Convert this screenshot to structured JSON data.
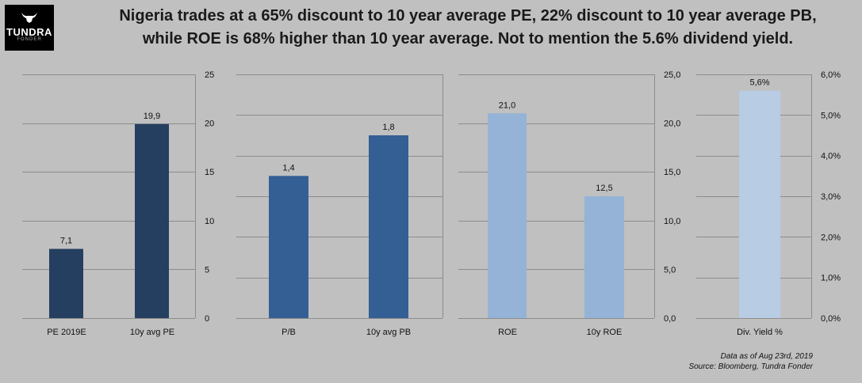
{
  "header": {
    "logo_brand": "TUNDRA",
    "logo_sub": "FONDER",
    "title_line1": "Nigeria trades at a 65% discount to 10 year average PE, 22% discount to 10 year average PB,",
    "title_line2": "while ROE is 68% higher than 10 year average. Not to mention the 5.6% dividend yield."
  },
  "source": {
    "line1": "Data as of Aug 23rd, 2019",
    "line2": "Source: Bloomberg, Tundra Fonder"
  },
  "colors": {
    "background": "#c0c0c0",
    "pe_bar": "#243f60",
    "pb_bar": "#345f94",
    "roe_bar": "#95b3d7",
    "div_bar": "#b8cce4",
    "grid": "#8c8c8c"
  },
  "chart_data": [
    {
      "type": "bar",
      "categories": [
        "PE 2019E",
        "10y avg PE"
      ],
      "values": [
        7.1,
        19.9
      ],
      "data_labels": [
        "7,1",
        "19,9"
      ],
      "ylim": [
        0,
        25
      ],
      "yticks": [
        0,
        5,
        10,
        15,
        20,
        25
      ],
      "ytick_labels": [
        "0",
        "5",
        "10",
        "15",
        "20",
        "25"
      ],
      "axis_side": "right",
      "grid": true
    },
    {
      "type": "bar",
      "categories": [
        "P/B",
        "10y avg PB"
      ],
      "values": [
        1.4,
        1.8
      ],
      "data_labels": [
        "1,4",
        "1,8"
      ],
      "ylim": [
        0,
        2.4
      ],
      "yticks": [],
      "ytick_labels": [],
      "axis_side": "right",
      "grid": true
    },
    {
      "type": "bar",
      "categories": [
        "ROE",
        "10y ROE"
      ],
      "values": [
        21.0,
        12.5
      ],
      "data_labels": [
        "21,0",
        "12,5"
      ],
      "ylim": [
        0,
        25
      ],
      "yticks": [
        0,
        5,
        10,
        15,
        20,
        25
      ],
      "ytick_labels": [
        "0,0",
        "5,0",
        "10,0",
        "15,0",
        "20,0",
        "25,0"
      ],
      "axis_side": "right",
      "grid": true
    },
    {
      "type": "bar",
      "categories": [
        "Div. Yield %"
      ],
      "values": [
        5.6
      ],
      "data_labels": [
        "5,6%"
      ],
      "ylim": [
        0,
        6
      ],
      "yticks": [
        0,
        1,
        2,
        3,
        4,
        5,
        6
      ],
      "ytick_labels": [
        "0,0%",
        "1,0%",
        "2,0%",
        "3,0%",
        "4,0%",
        "5,0%",
        "6,0%"
      ],
      "axis_side": "right",
      "grid": true
    }
  ]
}
